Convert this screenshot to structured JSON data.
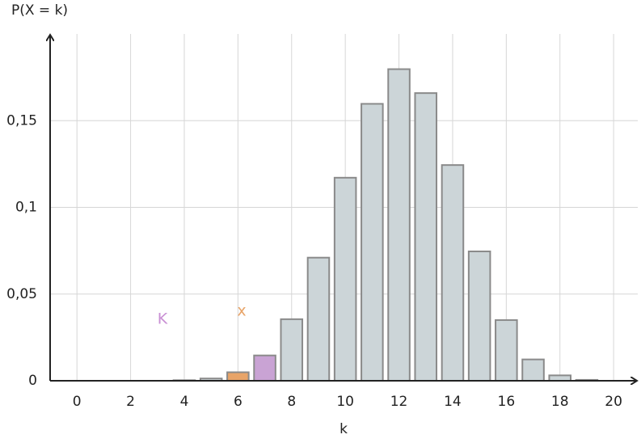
{
  "chart_data": {
    "type": "bar",
    "y_label": "P(X = k)",
    "x_label": "k",
    "x": [
      0,
      1,
      2,
      3,
      4,
      5,
      6,
      7,
      8,
      9,
      10,
      11,
      12,
      13,
      14,
      15,
      16,
      17,
      18,
      19,
      20
    ],
    "values": [
      0,
      0,
      0,
      0,
      0.0003,
      0.0013,
      0.0049,
      0.0146,
      0.0355,
      0.071,
      0.1171,
      0.1597,
      0.1797,
      0.1659,
      0.1244,
      0.0746,
      0.035,
      0.0123,
      0.0031,
      0.0005,
      0
    ],
    "colors": [
      "#ccd5d8",
      "#ccd5d8",
      "#ccd5d8",
      "#ccd5d8",
      "#ccd5d8",
      "#ccd5d8",
      "#e8a468",
      "#c9a3d4",
      "#ccd5d8",
      "#ccd5d8",
      "#ccd5d8",
      "#ccd5d8",
      "#ccd5d8",
      "#ccd5d8",
      "#ccd5d8",
      "#ccd5d8",
      "#ccd5d8",
      "#ccd5d8",
      "#ccd5d8",
      "#ccd5d8",
      "#ccd5d8"
    ],
    "annotations": [
      {
        "text": "K",
        "color": "#c990d4"
      },
      {
        "text": "x",
        "color": "#e8a468"
      }
    ],
    "xlim": [
      -1,
      20.9
    ],
    "ylim": [
      0,
      0.2
    ],
    "xticks": [
      0,
      2,
      4,
      6,
      8,
      10,
      12,
      14,
      16,
      18,
      20
    ],
    "yticks": [
      0,
      {
        "value": 0.05,
        "label": "0,05"
      },
      {
        "value": 0.1,
        "label": "0,1"
      },
      {
        "value": 0.15,
        "label": "0,15"
      }
    ],
    "grid": true
  }
}
